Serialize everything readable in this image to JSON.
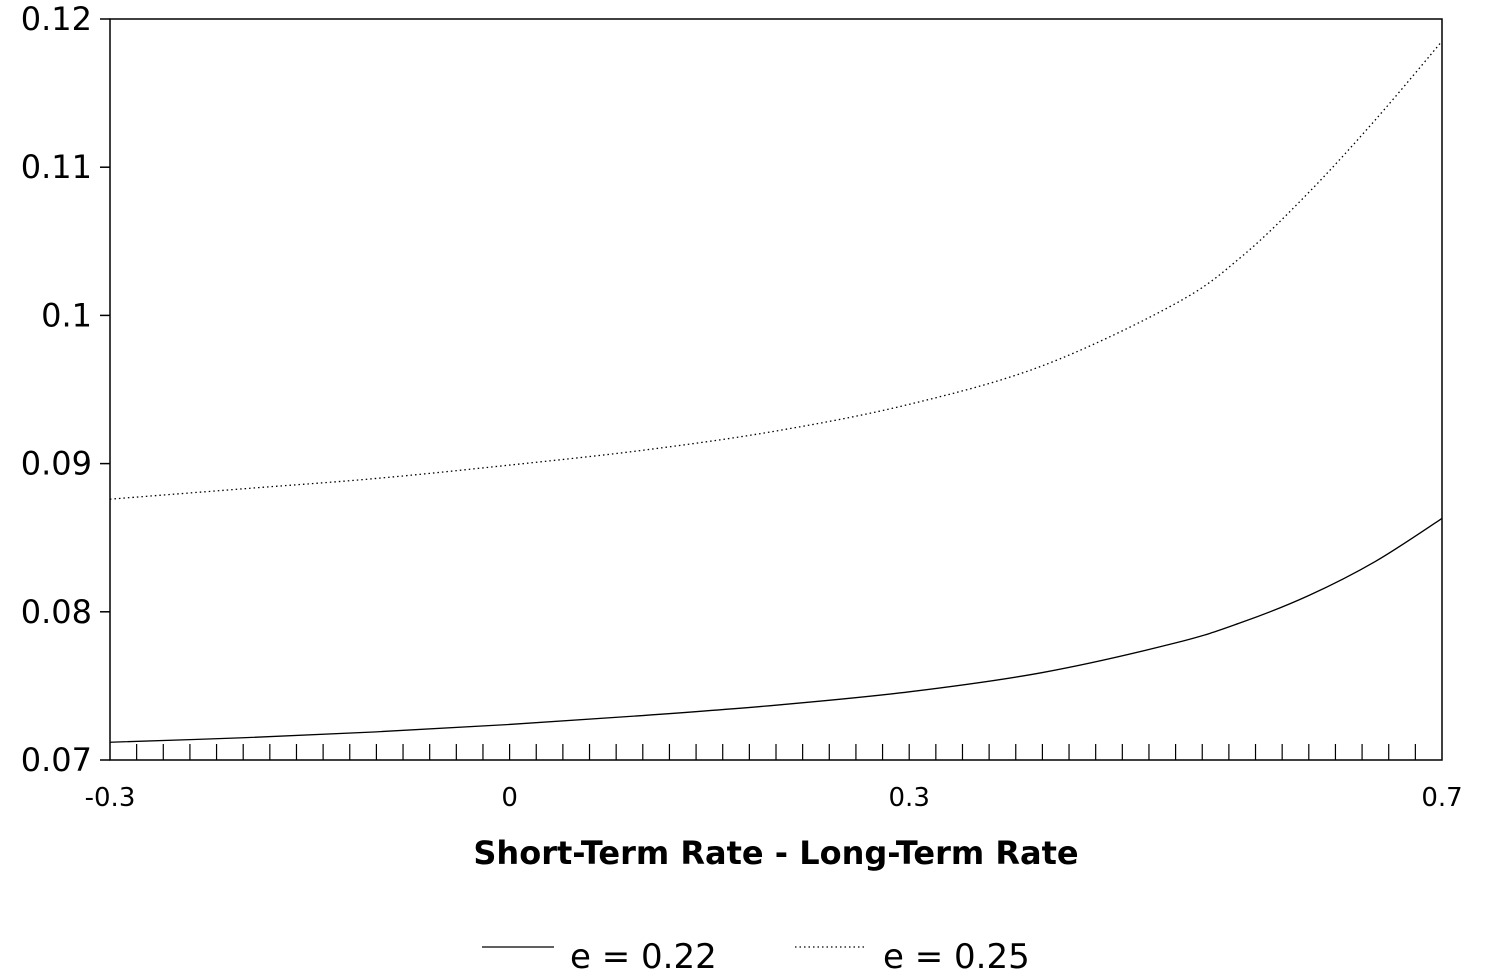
{
  "chart_data": {
    "type": "line",
    "title": "",
    "xlabel": "Short-Term Rate - Long-Term Rate",
    "ylabel": "",
    "xlim": [
      -0.3,
      0.7
    ],
    "ylim": [
      0.07,
      0.12
    ],
    "xticks": [
      "-0.3",
      "0",
      "0.3",
      "0.7"
    ],
    "yticks": [
      "0.07",
      "0.08",
      "0.09",
      "0.1",
      "0.11",
      "0.12"
    ],
    "grid": false,
    "legend_position": "bottom",
    "x": [
      -0.3,
      -0.2,
      -0.1,
      0.0,
      0.1,
      0.2,
      0.3,
      0.4,
      0.5,
      0.55,
      0.6,
      0.65,
      0.7
    ],
    "series": [
      {
        "name": "e = 0.22",
        "style": "solid",
        "values": [
          0.0712,
          0.0715,
          0.0719,
          0.0724,
          0.073,
          0.0737,
          0.0746,
          0.0759,
          0.0779,
          0.0793,
          0.0811,
          0.0834,
          0.0863
        ]
      },
      {
        "name": "e = 0.25",
        "style": "dotted",
        "values": [
          0.0876,
          0.0883,
          0.089,
          0.0899,
          0.0909,
          0.0922,
          0.094,
          0.0966,
          0.1008,
          0.104,
          0.1083,
          0.1132,
          0.1185
        ]
      }
    ]
  }
}
